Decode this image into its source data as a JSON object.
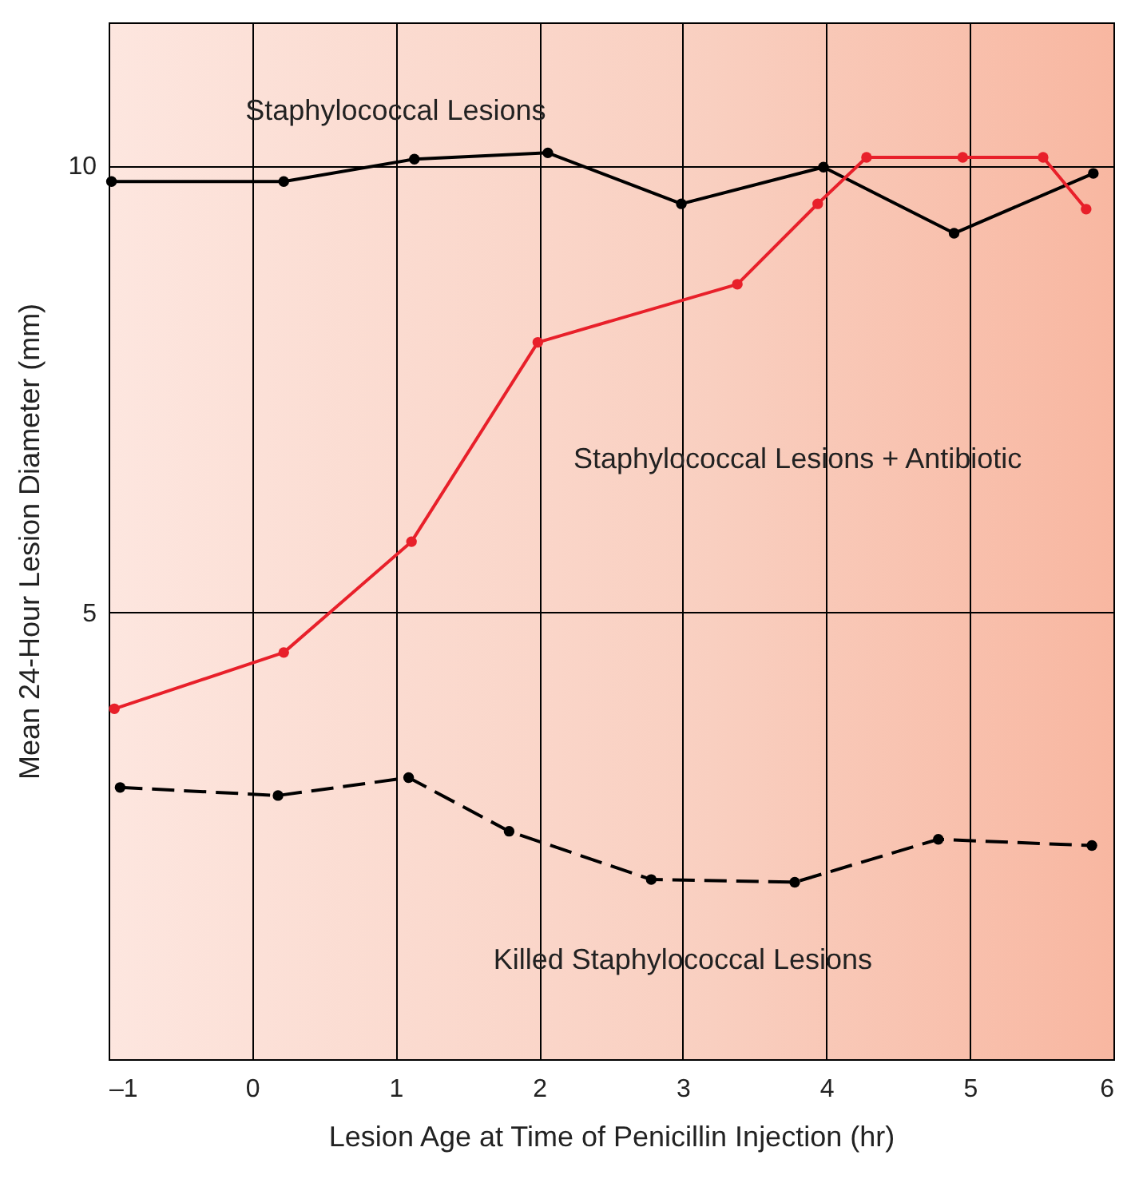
{
  "chart_data": {
    "type": "line",
    "xlabel": "Lesion Age at Time of Penicillin Injection (hr)",
    "ylabel": "Mean 24-Hour Lesion Diameter (mm)",
    "xlim": [
      -1,
      6
    ],
    "ylim": [
      0,
      11.6
    ],
    "xticks": [
      {
        "value": -1,
        "label": "–1"
      },
      0,
      1,
      2,
      3,
      4,
      5,
      6
    ],
    "yticks": [
      5,
      10
    ],
    "grid": true,
    "marker": "circle",
    "series": [
      {
        "name": "Staphylococcal Lesions",
        "color": "#000000",
        "line_style": "solid",
        "x": [
          -0.98,
          0.22,
          1.13,
          2.06,
          2.99,
          3.98,
          4.89,
          5.86
        ],
        "values": [
          9.82,
          9.82,
          10.07,
          10.14,
          9.57,
          9.98,
          9.24,
          9.91
        ]
      },
      {
        "name": "Staphylococcal Lesions + Antibiotic",
        "color": "#e8202a",
        "line_style": "solid",
        "x": [
          -0.96,
          0.22,
          1.11,
          1.99,
          3.38,
          3.94,
          4.28,
          4.95,
          5.51,
          5.81
        ],
        "values": [
          3.92,
          4.55,
          5.79,
          8.02,
          8.67,
          9.57,
          10.09,
          10.09,
          10.09,
          9.51
        ]
      },
      {
        "name": "Killed Staphylococcal Lesions",
        "color": "#000000",
        "line_style": "dashed",
        "x": [
          -0.92,
          0.18,
          1.09,
          1.79,
          2.78,
          3.78,
          4.78,
          5.85
        ],
        "values": [
          3.04,
          2.95,
          3.15,
          2.55,
          2.01,
          1.98,
          2.46,
          2.39
        ]
      }
    ]
  }
}
